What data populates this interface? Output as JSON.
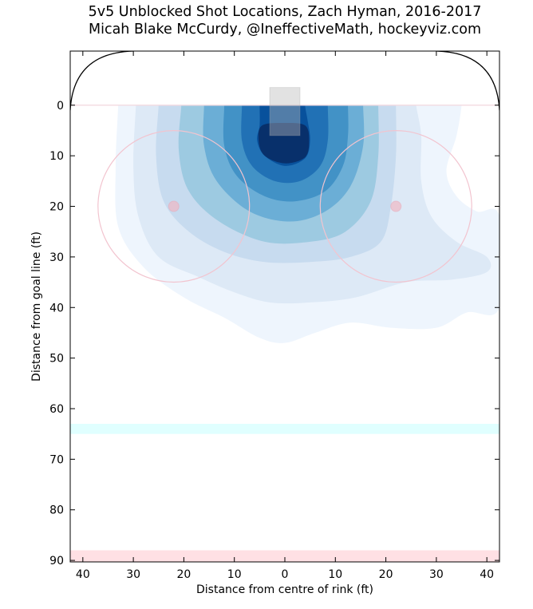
{
  "chart_data": {
    "type": "heatmap",
    "title": "5v5 Unblocked Shot Locations, Zach Hyman, 2016-2017",
    "subtitle": "Micah Blake McCurdy, @IneffectiveMath, hockeyviz.com",
    "xlabel": "Distance from centre of rink (ft)",
    "ylabel": "Distance from goal line (ft)",
    "xlim": [
      -42.5,
      42.5
    ],
    "ylim": [
      90.3,
      -10.7
    ],
    "xticks": [
      -40,
      -30,
      -20,
      -10,
      0,
      10,
      20,
      30,
      40
    ],
    "xtick_labels": [
      "40",
      "30",
      "20",
      "10",
      "0",
      "10",
      "20",
      "30",
      "40"
    ],
    "yticks": [
      0,
      10,
      20,
      30,
      40,
      50,
      60,
      70,
      80,
      90
    ],
    "ytick_labels": [
      "0",
      "10",
      "20",
      "30",
      "40",
      "50",
      "60",
      "70",
      "80",
      "90"
    ],
    "rink": {
      "faceoff_circles": [
        {
          "x": -22,
          "y": 20,
          "r": 15
        },
        {
          "x": 22,
          "y": 20,
          "r": 15
        }
      ],
      "blue_line": [
        63,
        65
      ],
      "red_line": [
        88,
        90.3
      ],
      "crease": {
        "x": [
          -3,
          3
        ],
        "y": [
          -3.5,
          0
        ]
      },
      "colors": {
        "circle": "#f2c4cf",
        "dot": "#f0b8c4",
        "blue_line": "#e0ffff",
        "red_line": "#ffe0e4",
        "crease": "#bbbbbb"
      }
    },
    "contour_levels": [
      {
        "color": "#eef5fd",
        "points": [
          [
            -33,
            0
          ],
          [
            -33.5,
            12
          ],
          [
            -33,
            24
          ],
          [
            -28,
            32
          ],
          [
            -20,
            38
          ],
          [
            -12,
            42
          ],
          [
            -5,
            46
          ],
          [
            0,
            47
          ],
          [
            6,
            45
          ],
          [
            13,
            43
          ],
          [
            21,
            44
          ],
          [
            30,
            44
          ],
          [
            36,
            41
          ],
          [
            42.5,
            40
          ],
          [
            42.5,
            22
          ],
          [
            38,
            21
          ],
          [
            34,
            18
          ],
          [
            32,
            13
          ],
          [
            34,
            6
          ],
          [
            35,
            0
          ]
        ]
      },
      {
        "color": "#dde9f6",
        "points": [
          [
            -29.5,
            0
          ],
          [
            -30,
            12
          ],
          [
            -29,
            22
          ],
          [
            -25,
            30
          ],
          [
            -17,
            34
          ],
          [
            -10,
            37
          ],
          [
            -3,
            39
          ],
          [
            5,
            39
          ],
          [
            14,
            38
          ],
          [
            24,
            35
          ],
          [
            33,
            34.5
          ],
          [
            40,
            33
          ],
          [
            40,
            30
          ],
          [
            34,
            27
          ],
          [
            29,
            22
          ],
          [
            27,
            15
          ],
          [
            27,
            6
          ],
          [
            26,
            0
          ]
        ]
      },
      {
        "color": "#c7dbef",
        "points": [
          [
            -25,
            0
          ],
          [
            -25.5,
            10
          ],
          [
            -24,
            19
          ],
          [
            -19,
            25
          ],
          [
            -12,
            29
          ],
          [
            -4,
            31
          ],
          [
            5,
            31
          ],
          [
            13,
            30
          ],
          [
            19,
            27
          ],
          [
            21,
            20
          ],
          [
            22,
            10
          ],
          [
            22,
            0
          ]
        ]
      },
      {
        "color": "#9dcae1",
        "points": [
          [
            -20.5,
            0
          ],
          [
            -21,
            9
          ],
          [
            -19,
            17
          ],
          [
            -13,
            23
          ],
          [
            -4,
            27
          ],
          [
            5,
            27
          ],
          [
            12,
            25
          ],
          [
            17,
            19
          ],
          [
            18.5,
            10
          ],
          [
            18.5,
            0
          ]
        ]
      },
      {
        "color": "#6baed6",
        "points": [
          [
            -16,
            0
          ],
          [
            -16,
            8
          ],
          [
            -13.5,
            15
          ],
          [
            -7,
            21
          ],
          [
            1,
            23
          ],
          [
            8,
            21
          ],
          [
            13,
            16
          ],
          [
            15.5,
            8
          ],
          [
            15.5,
            0
          ]
        ]
      },
      {
        "color": "#4292c6",
        "points": [
          [
            -12,
            0
          ],
          [
            -12,
            8
          ],
          [
            -9.5,
            14
          ],
          [
            -4,
            18
          ],
          [
            2,
            19
          ],
          [
            8,
            17
          ],
          [
            11.5,
            12
          ],
          [
            12.5,
            6
          ],
          [
            12.5,
            0
          ]
        ]
      },
      {
        "color": "#2171b5",
        "points": [
          [
            -8.5,
            0
          ],
          [
            -8.5,
            7
          ],
          [
            -6.5,
            12
          ],
          [
            -2,
            15
          ],
          [
            3,
            15
          ],
          [
            7,
            12
          ],
          [
            8.5,
            7
          ],
          [
            8.5,
            0
          ]
        ]
      },
      {
        "color": "#08519c",
        "points": [
          [
            -5,
            0
          ],
          [
            -5,
            4
          ],
          [
            -5.5,
            7
          ],
          [
            -4,
            10
          ],
          [
            0,
            12
          ],
          [
            4,
            10.5
          ],
          [
            5,
            7
          ],
          [
            4.5,
            3
          ],
          [
            4,
            0
          ]
        ]
      },
      {
        "color": "#08306b",
        "points": [
          [
            -4.5,
            4
          ],
          [
            -5.2,
            7
          ],
          [
            -4,
            10
          ],
          [
            0,
            11.5
          ],
          [
            4,
            10.3
          ],
          [
            4.8,
            7
          ],
          [
            4,
            4
          ],
          [
            0,
            3.5
          ]
        ]
      }
    ]
  }
}
